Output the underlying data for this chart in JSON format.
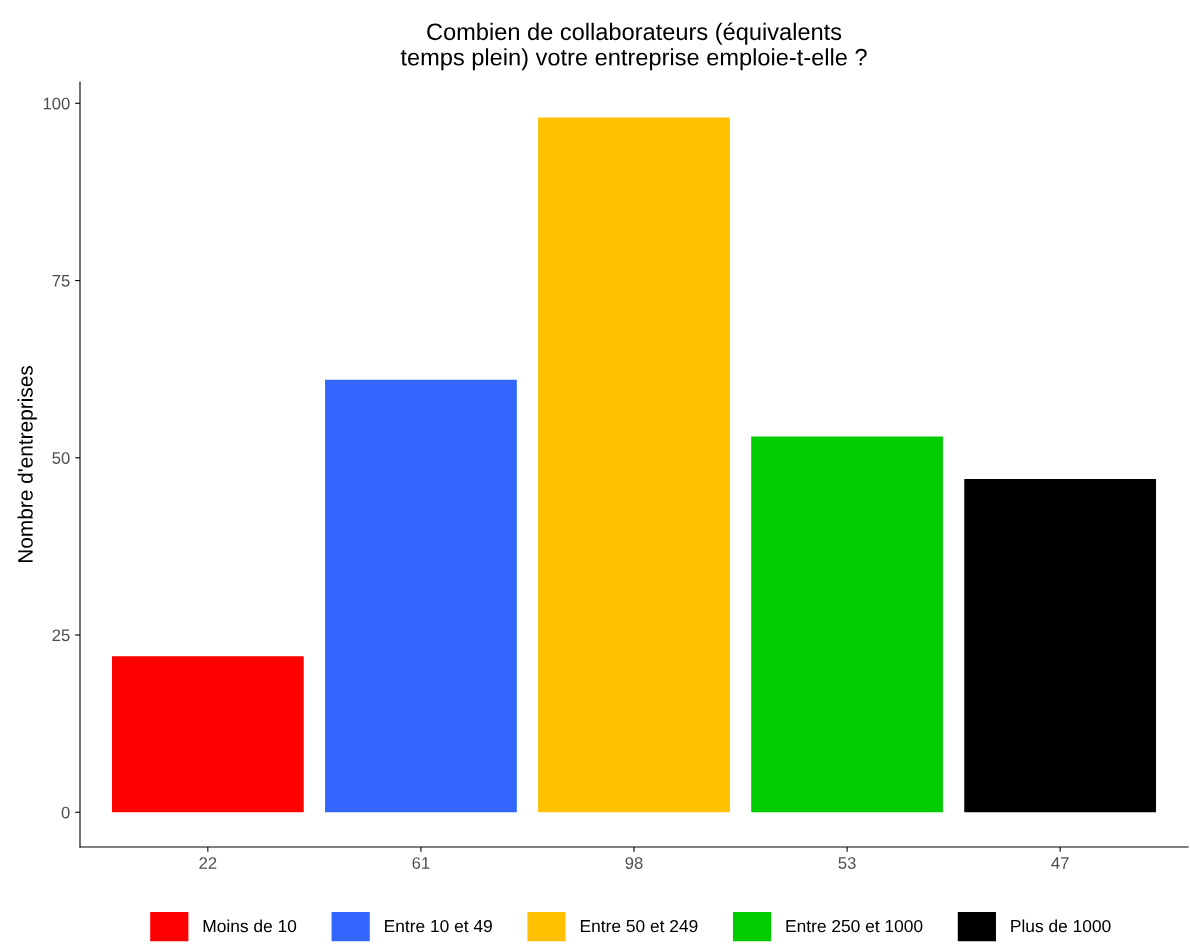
{
  "chart_data": {
    "type": "bar",
    "title": "Combien de collaborateurs (équivalents\ntemps plein) votre entreprise emploie-t-elle ?",
    "ylabel": "Nombre d'entreprises",
    "categories": [
      "22",
      "61",
      "98",
      "53",
      "47"
    ],
    "stacked": true,
    "series": [
      {
        "name": "Moins de 10",
        "color": "#ff0000",
        "values": [
          22,
          null,
          null,
          null,
          null
        ]
      },
      {
        "name": "Entre 10 et 49",
        "color": "#3366ff",
        "values": [
          null,
          61,
          null,
          null,
          null
        ]
      },
      {
        "name": "Entre 50 et 249",
        "color": "#ffc000",
        "values": [
          null,
          null,
          98,
          null,
          null
        ]
      },
      {
        "name": "Entre 250 et 1000",
        "color": "#00cc00",
        "values": [
          null,
          null,
          null,
          53,
          null
        ]
      },
      {
        "name": "Plus de 1000",
        "color": "#000000",
        "values": [
          null,
          null,
          null,
          null,
          47
        ]
      }
    ],
    "ylim": [
      -4.9,
      103
    ],
    "yticks": [
      0,
      25,
      50,
      75,
      100
    ],
    "grid": false,
    "legend": "bottom"
  }
}
